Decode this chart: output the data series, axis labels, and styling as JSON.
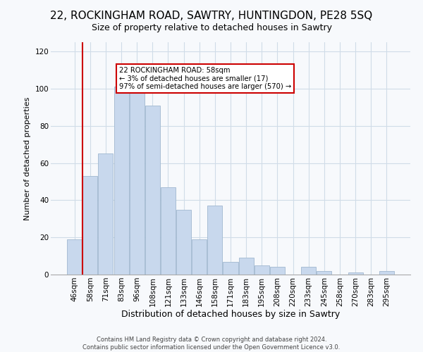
{
  "title1": "22, ROCKINGHAM ROAD, SAWTRY, HUNTINGDON, PE28 5SQ",
  "title2": "Size of property relative to detached houses in Sawtry",
  "xlabel": "Distribution of detached houses by size in Sawtry",
  "ylabel": "Number of detached properties",
  "categories": [
    "46sqm",
    "58sqm",
    "71sqm",
    "83sqm",
    "96sqm",
    "108sqm",
    "121sqm",
    "133sqm",
    "146sqm",
    "158sqm",
    "171sqm",
    "183sqm",
    "195sqm",
    "208sqm",
    "220sqm",
    "233sqm",
    "245sqm",
    "258sqm",
    "270sqm",
    "283sqm",
    "295sqm"
  ],
  "values": [
    19,
    53,
    65,
    101,
    98,
    91,
    47,
    35,
    19,
    37,
    7,
    9,
    5,
    4,
    0,
    4,
    2,
    0,
    1,
    0,
    2
  ],
  "bar_color": "#c8d8ed",
  "bar_edge_color": "#a0b8d0",
  "highlight_bar_index": 1,
  "highlight_color": "#cc0000",
  "annotation_line1": "22 ROCKINGHAM ROAD: 58sqm",
  "annotation_line2": "← 3% of detached houses are smaller (17)",
  "annotation_line3": "97% of semi-detached houses are larger (570) →",
  "annotation_box_facecolor": "#ffffff",
  "annotation_box_edgecolor": "#cc0000",
  "ylim": [
    0,
    125
  ],
  "yticks": [
    0,
    20,
    40,
    60,
    80,
    100,
    120
  ],
  "footer1": "Contains HM Land Registry data © Crown copyright and database right 2024.",
  "footer2": "Contains public sector information licensed under the Open Government Licence v3.0.",
  "bg_color": "#f7f9fc",
  "grid_color": "#d0dce8",
  "title1_fontsize": 11,
  "title2_fontsize": 9,
  "xlabel_fontsize": 9,
  "ylabel_fontsize": 8,
  "tick_fontsize": 7.5,
  "footer_fontsize": 6
}
